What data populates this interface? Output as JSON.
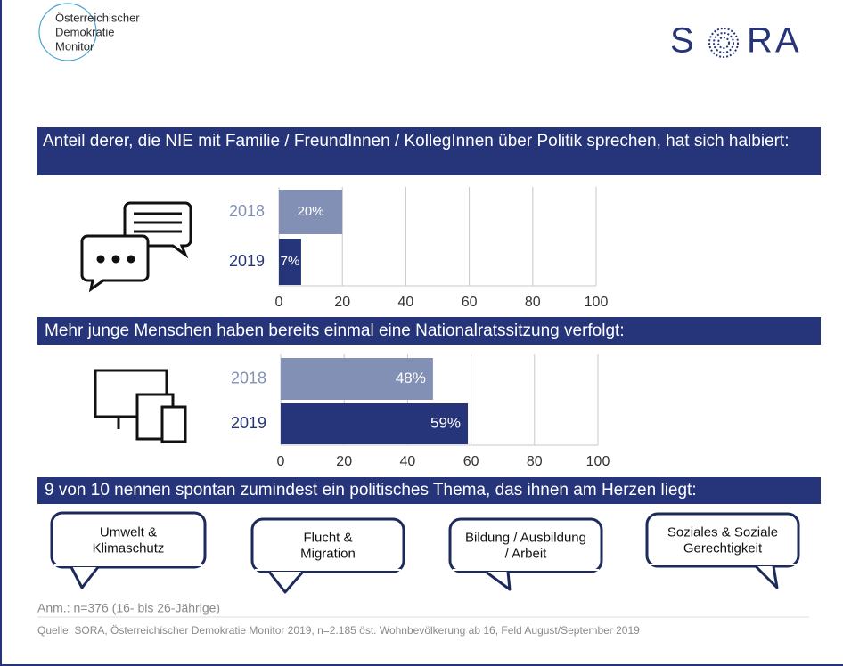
{
  "logo": {
    "lines": [
      "Österreichischer",
      "Demokratie",
      "Monitor"
    ],
    "brand_letters": [
      "S",
      "R",
      "A"
    ]
  },
  "banners": [
    "Anteil derer, die NIE mit Familie / FreundInnen  / KollegInnen  über Politik sprechen, hat sich halbiert:",
    "Mehr junge Menschen haben bereits einmal eine Nationalratssitzung  verfolgt:",
    "9 von 10 nennen spontan zumindest  ein politisches Thema, das ihnen am Herzen  liegt:"
  ],
  "chart_data": [
    {
      "type": "hbar",
      "categories": [
        "2018",
        "2019"
      ],
      "values": [
        20,
        7
      ],
      "value_labels": [
        "20%",
        "7%"
      ],
      "colors": [
        "#8390b6",
        "#26357a"
      ],
      "xlim": [
        0,
        100
      ],
      "xticks": [
        0,
        20,
        40,
        60,
        80,
        100
      ],
      "grid": true
    },
    {
      "type": "hbar",
      "categories": [
        "2018",
        "2019"
      ],
      "values": [
        48,
        59
      ],
      "value_labels": [
        "48%",
        "59%"
      ],
      "colors": [
        "#8390b6",
        "#26357a"
      ],
      "xlim": [
        0,
        100
      ],
      "xticks": [
        0,
        20,
        40,
        60,
        80,
        100
      ],
      "grid": true
    }
  ],
  "topics": [
    [
      "Umwelt &",
      "Klimaschutz"
    ],
    [
      "Flucht &",
      "Migration"
    ],
    [
      "Bildung / Ausbildung",
      "/ Arbeit"
    ],
    [
      "Soziales & Soziale",
      "Gerechtigkeit"
    ]
  ],
  "notes": {
    "sample": "Anm.: n=376 (16- bis 26-Jährige)",
    "source": "Quelle: SORA, Österreichischer Demokratie Monitor 2019, n=2.185 öst. Wohnbevölkerung  ab 16, Feld August/September 2019"
  }
}
